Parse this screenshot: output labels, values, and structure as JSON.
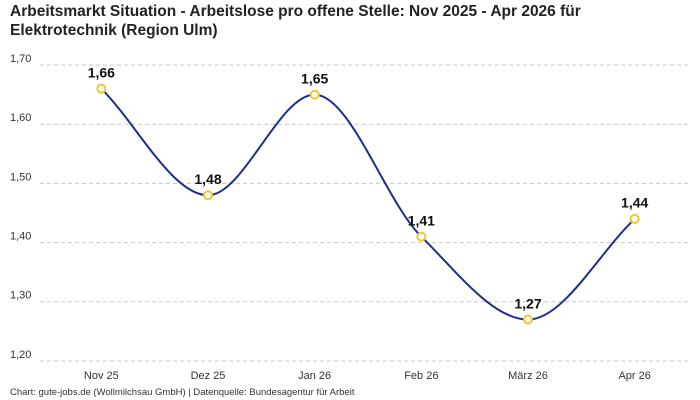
{
  "chart_data": {
    "type": "line",
    "title": "Arbeitsmarkt Situation - Arbeitslose pro offene Stelle: Nov 2025 - Apr 2026 für Elektrotechnik (Region Ulm)",
    "footer": "Chart: gute-jobs.de (Wollmilchsau GmbH) | Datenquelle: Bundesagentur für Arbeit",
    "categories": [
      "Nov 25",
      "Dez 25",
      "Jan 26",
      "Feb 26",
      "März 26",
      "Apr 26"
    ],
    "values": [
      1.66,
      1.48,
      1.65,
      1.41,
      1.27,
      1.44
    ],
    "value_labels": [
      "1,66",
      "1,48",
      "1,65",
      "1,41",
      "1,27",
      "1,44"
    ],
    "color": "#1f2d8c",
    "marker_color": "#f2c62e",
    "ylim": [
      1.2,
      1.7
    ],
    "yticks": [
      {
        "value": 1.2,
        "label": "1,20"
      },
      {
        "value": 1.3,
        "label": "1,30"
      },
      {
        "value": 1.4,
        "label": "1,40"
      },
      {
        "value": 1.5,
        "label": "1,50"
      },
      {
        "value": 1.6,
        "label": "1,60"
      },
      {
        "value": 1.7,
        "label": "1,70"
      }
    ],
    "grid": true
  }
}
